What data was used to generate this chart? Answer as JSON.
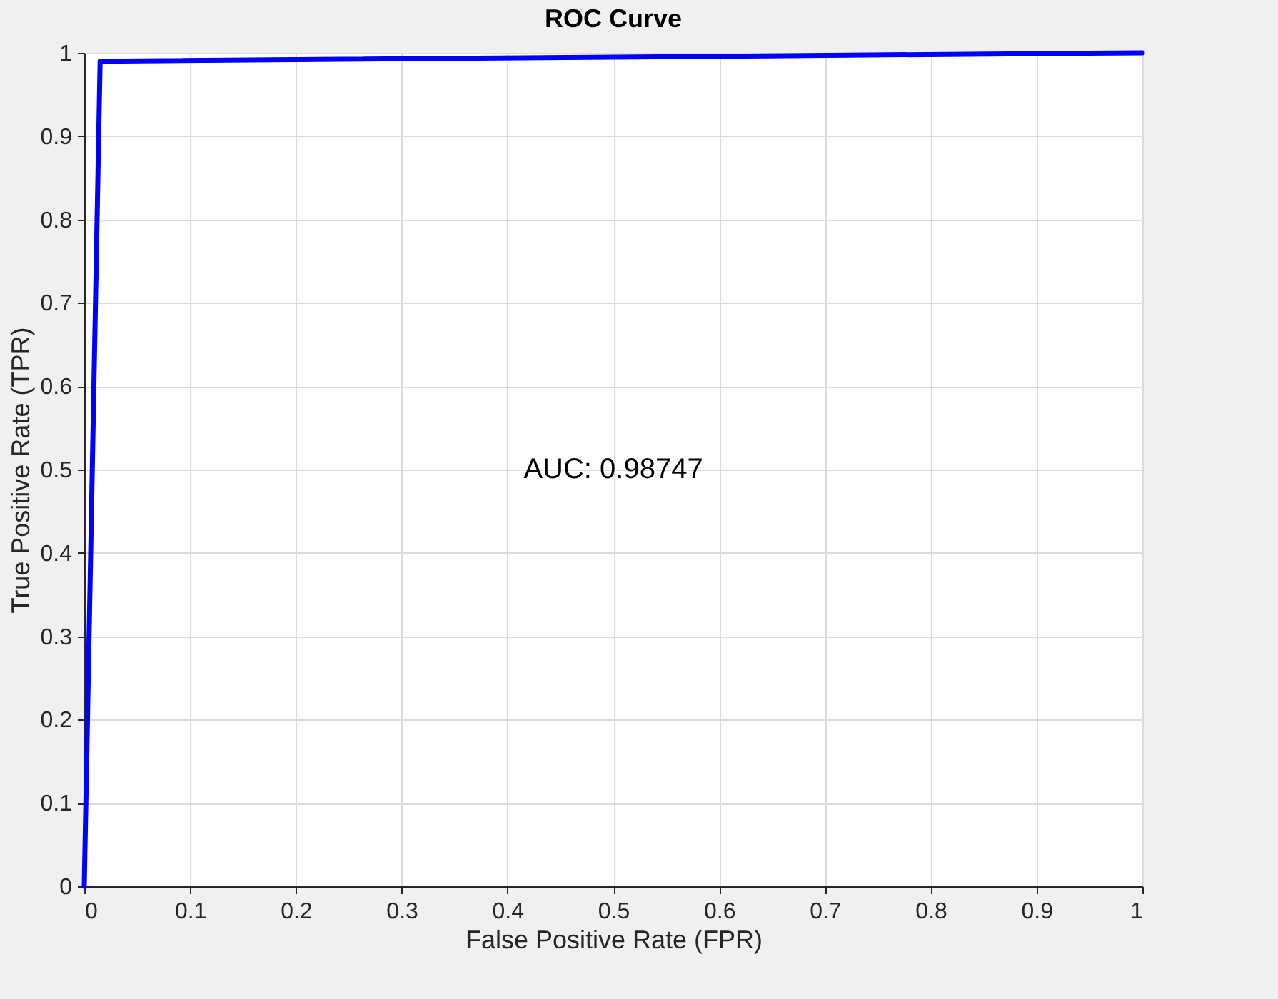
{
  "chart_data": {
    "type": "line",
    "title": "ROC Curve",
    "xlabel": "False Positive Rate (FPR)",
    "ylabel": "True Positive Rate (TPR)",
    "x": [
      0,
      0.015,
      1
    ],
    "series": [
      {
        "color": "#0000ff",
        "values": [
          0,
          0.99,
          1
        ]
      }
    ],
    "xlim": [
      0,
      1
    ],
    "ylim": [
      0,
      1
    ],
    "xticks": [
      0,
      0.1,
      0.2,
      0.3,
      0.4,
      0.5,
      0.6,
      0.7,
      0.8,
      0.9,
      1
    ],
    "yticks": [
      0,
      0.1,
      0.2,
      0.3,
      0.4,
      0.5,
      0.6,
      0.7,
      0.8,
      0.9,
      1
    ],
    "grid": true,
    "marker": "none",
    "line_style": "solid",
    "annotations": [
      "AUC: 0.98747"
    ]
  }
}
